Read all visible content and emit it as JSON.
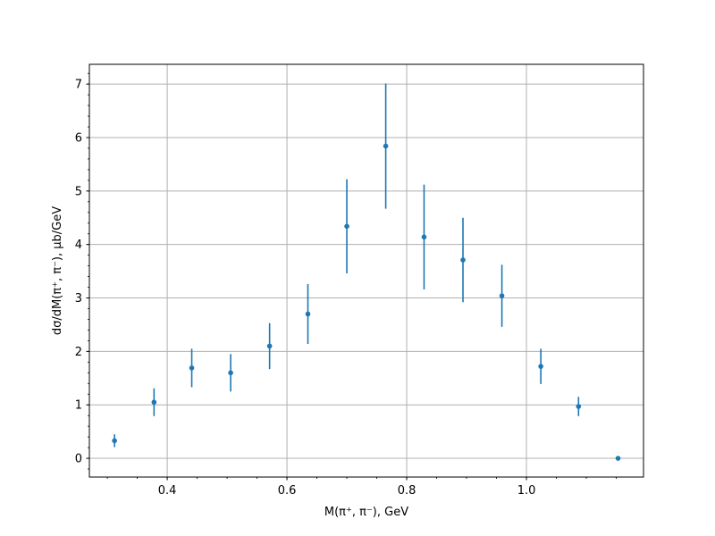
{
  "chart_data": {
    "type": "scatter",
    "title": "",
    "xlabel": "M(π⁺, π⁻), GeV",
    "ylabel": "dσ/dM(π⁺, π⁻), μb/GeV",
    "xlim": [
      0.27,
      1.1955
    ],
    "ylim": [
      -0.35,
      7.37
    ],
    "xticks": [
      0.4,
      0.6,
      0.8,
      1.0
    ],
    "xtick_labels": [
      "0.4",
      "0.6",
      "0.8",
      "1.0"
    ],
    "yticks": [
      0,
      1,
      2,
      3,
      4,
      5,
      6,
      7
    ],
    "ytick_labels": [
      "0",
      "1",
      "2",
      "3",
      "4",
      "5",
      "6",
      "7"
    ],
    "x_minor_step": 0.05,
    "y_minor_step": 0.2,
    "grid": true,
    "color": "#1f77b4",
    "series": [
      {
        "x": [
          0.312,
          0.378,
          0.441,
          0.506,
          0.571,
          0.635,
          0.7,
          0.765,
          0.829,
          0.894,
          0.959,
          1.024,
          1.087,
          1.153
        ],
        "y": [
          0.33,
          1.05,
          1.69,
          1.6,
          2.1,
          2.7,
          4.34,
          5.84,
          4.14,
          3.71,
          3.04,
          1.72,
          0.97,
          0.0
        ],
        "yerr": [
          0.12,
          0.26,
          0.36,
          0.35,
          0.43,
          0.56,
          0.88,
          1.17,
          0.98,
          0.79,
          0.58,
          0.33,
          0.18,
          0.0
        ]
      }
    ]
  }
}
